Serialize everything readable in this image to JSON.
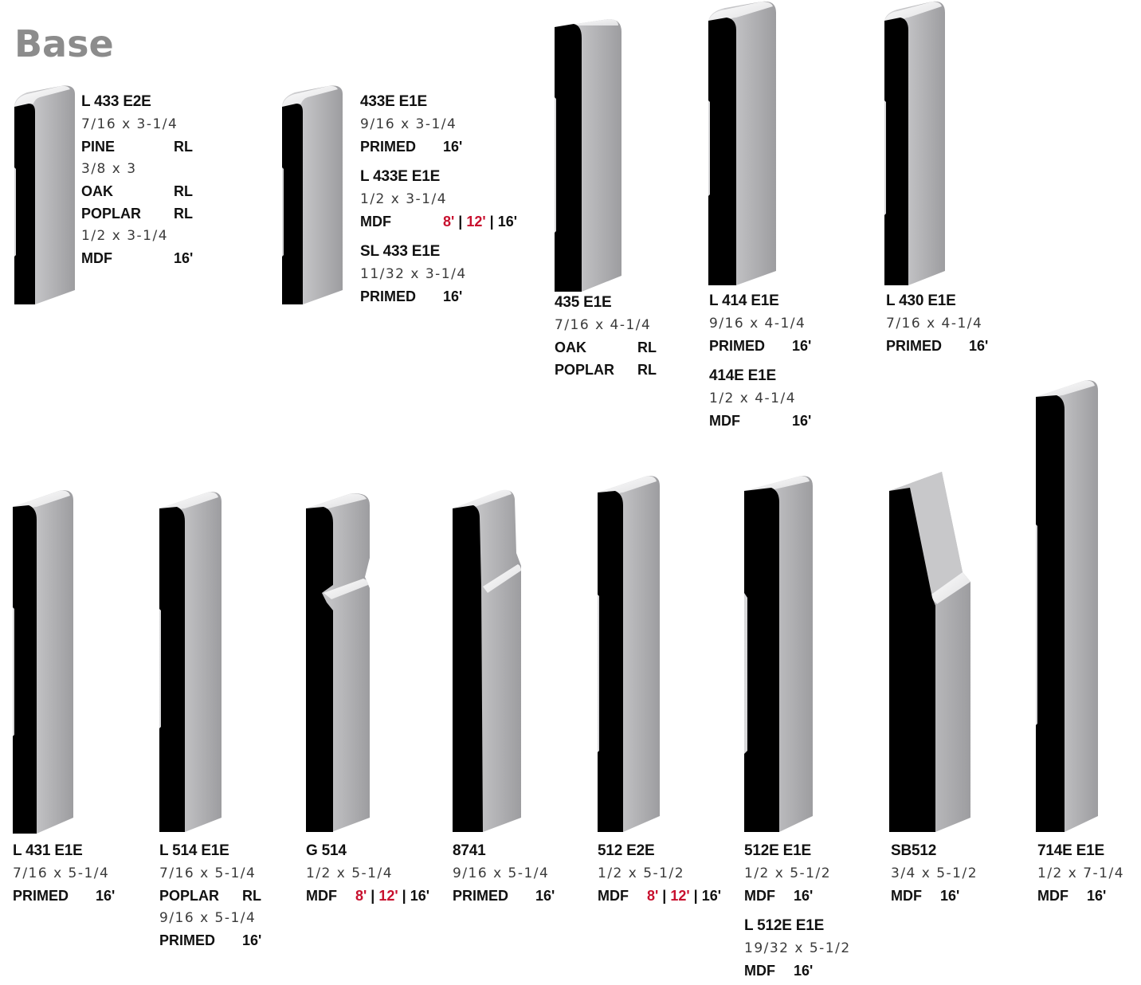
{
  "page": {
    "title": "Base"
  },
  "colors": {
    "face_black": "#000000",
    "face_gray": "#a9a9ab",
    "title_gray": "#8c8c8c",
    "accent_red": "#c8102e"
  },
  "products": [
    {
      "id": "p1",
      "blocks": [
        {
          "model": "L 433 E2E",
          "rows": [
            {
              "dim": "7/16 x 3-1/4"
            },
            {
              "material": "PINE",
              "lengths": [
                {
                  "text": "RL"
                }
              ]
            },
            {
              "dim": "3/8 x 3"
            },
            {
              "material": "OAK",
              "lengths": [
                {
                  "text": "RL"
                }
              ]
            },
            {
              "material": "POPLAR",
              "lengths": [
                {
                  "text": "RL"
                }
              ]
            },
            {
              "dim": "1/2 x 3-1/4"
            },
            {
              "material": "MDF",
              "lengths": [
                {
                  "text": "16'"
                }
              ]
            }
          ]
        }
      ]
    },
    {
      "id": "p2",
      "blocks": [
        {
          "model": "433E E1E",
          "rows": [
            {
              "dim": "9/16 x 3-1/4"
            },
            {
              "material": "PRIMED",
              "lengths": [
                {
                  "text": "16'"
                }
              ]
            }
          ]
        },
        {
          "model": "L 433E E1E",
          "rows": [
            {
              "dim": "1/2 x 3-1/4"
            },
            {
              "material": "MDF",
              "lengths": [
                {
                  "text": "8'",
                  "red": true
                },
                {
                  "text": "12'",
                  "red": true
                },
                {
                  "text": "16'"
                }
              ]
            }
          ]
        },
        {
          "model": "SL 433 E1E",
          "rows": [
            {
              "dim": "11/32 x 3-1/4"
            },
            {
              "material": "PRIMED",
              "lengths": [
                {
                  "text": "16'"
                }
              ]
            }
          ]
        }
      ]
    },
    {
      "id": "p3",
      "blocks": [
        {
          "model": "435 E1E",
          "rows": [
            {
              "dim": "7/16 x 4-1/4"
            },
            {
              "material": "OAK",
              "lengths": [
                {
                  "text": "RL"
                }
              ]
            },
            {
              "material": "POPLAR",
              "lengths": [
                {
                  "text": "RL"
                }
              ]
            }
          ]
        }
      ]
    },
    {
      "id": "p4",
      "blocks": [
        {
          "model": "L 414 E1E",
          "rows": [
            {
              "dim": "9/16 x 4-1/4"
            },
            {
              "material": "PRIMED",
              "lengths": [
                {
                  "text": "16'"
                }
              ]
            }
          ]
        },
        {
          "model": "414E E1E",
          "rows": [
            {
              "dim": "1/2 x 4-1/4"
            },
            {
              "material": "MDF",
              "lengths": [
                {
                  "text": "16'"
                }
              ]
            }
          ]
        }
      ]
    },
    {
      "id": "p5",
      "blocks": [
        {
          "model": "L 430 E1E",
          "rows": [
            {
              "dim": "7/16 x 4-1/4"
            },
            {
              "material": "PRIMED",
              "lengths": [
                {
                  "text": "16'"
                }
              ]
            }
          ]
        }
      ]
    },
    {
      "id": "p6",
      "blocks": [
        {
          "model": "L 431 E1E",
          "rows": [
            {
              "dim": "7/16 x 5-1/4"
            },
            {
              "material": "PRIMED",
              "lengths": [
                {
                  "text": "16'"
                }
              ]
            }
          ]
        }
      ]
    },
    {
      "id": "p7",
      "blocks": [
        {
          "model": "L 514 E1E",
          "rows": [
            {
              "dim": "7/16 x 5-1/4"
            },
            {
              "material": "POPLAR",
              "lengths": [
                {
                  "text": "RL"
                }
              ]
            },
            {
              "dim": "9/16 x 5-1/4"
            },
            {
              "material": "PRIMED",
              "lengths": [
                {
                  "text": "16'"
                }
              ]
            }
          ]
        }
      ]
    },
    {
      "id": "p8",
      "blocks": [
        {
          "model": "G 514",
          "rows": [
            {
              "dim": "1/2 x 5-1/4"
            },
            {
              "material": "MDF",
              "lengths": [
                {
                  "text": "8'",
                  "red": true
                },
                {
                  "text": "12'",
                  "red": true
                },
                {
                  "text": "16'"
                }
              ]
            }
          ]
        }
      ]
    },
    {
      "id": "p9",
      "blocks": [
        {
          "model": "8741",
          "rows": [
            {
              "dim": "9/16 x 5-1/4"
            },
            {
              "material": "PRIMED",
              "lengths": [
                {
                  "text": "16'"
                }
              ]
            }
          ]
        }
      ]
    },
    {
      "id": "p10",
      "blocks": [
        {
          "model": "512 E2E",
          "rows": [
            {
              "dim": "1/2 x 5-1/2"
            },
            {
              "material": "MDF",
              "lengths": [
                {
                  "text": "8'",
                  "red": true
                },
                {
                  "text": "12'",
                  "red": true
                },
                {
                  "text": "16'"
                }
              ]
            }
          ]
        }
      ]
    },
    {
      "id": "p11",
      "blocks": [
        {
          "model": "512E E1E",
          "rows": [
            {
              "dim": "1/2 x 5-1/2"
            },
            {
              "material": "MDF",
              "lengths": [
                {
                  "text": "16'"
                }
              ]
            }
          ]
        },
        {
          "model": "L 512E E1E",
          "rows": [
            {
              "dim": "19/32 x 5-1/2"
            },
            {
              "material": "MDF",
              "lengths": [
                {
                  "text": "16'"
                }
              ]
            }
          ]
        }
      ]
    },
    {
      "id": "p12",
      "blocks": [
        {
          "model": "SB512",
          "rows": [
            {
              "dim": "3/4 x 5-1/2"
            },
            {
              "material": "MDF",
              "lengths": [
                {
                  "text": "16'"
                }
              ]
            }
          ]
        }
      ]
    },
    {
      "id": "p13",
      "blocks": [
        {
          "model": "714E E1E",
          "rows": [
            {
              "dim": "1/2 x 7-1/4"
            },
            {
              "material": "MDF",
              "lengths": [
                {
                  "text": "16'"
                }
              ]
            }
          ]
        }
      ]
    }
  ]
}
